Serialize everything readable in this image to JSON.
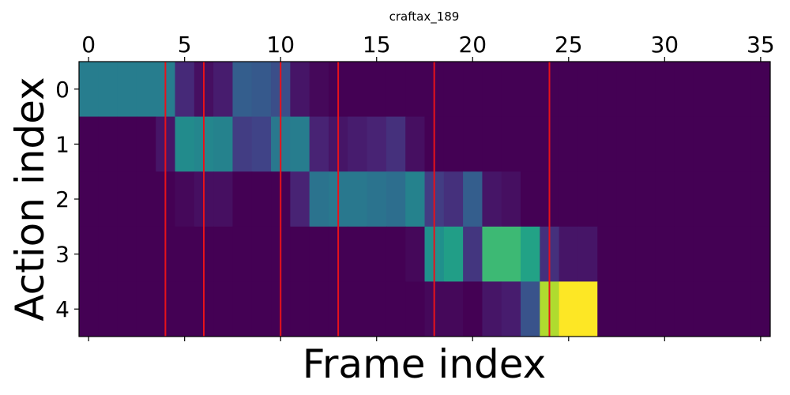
{
  "chart_data": {
    "type": "heatmap",
    "title": "craftax_189",
    "xlabel": "Frame index",
    "ylabel": "Action index",
    "x_ticks": [
      0,
      5,
      10,
      15,
      20,
      25,
      30,
      35
    ],
    "y_ticks": [
      0,
      1,
      2,
      3,
      4
    ],
    "xlim": [
      -0.5,
      35.5
    ],
    "ylim": [
      -0.5,
      4.5
    ],
    "x_tick_position": "top",
    "colormap": "viridis",
    "value_range": [
      0,
      1
    ],
    "grid": false,
    "values": [
      [
        0.42,
        0.42,
        0.42,
        0.42,
        0.42,
        0.12,
        0.04,
        0.08,
        0.3,
        0.28,
        0.24,
        0.06,
        0.02,
        0.0,
        0.0,
        0.0,
        0.0,
        0.0,
        0.0,
        0.0,
        0.0,
        0.0,
        0.0,
        0.0,
        0.0,
        0.0,
        0.0,
        0.0,
        0.0,
        0.0,
        0.0,
        0.0,
        0.0,
        0.0,
        0.0,
        0.0
      ],
      [
        0.0,
        0.0,
        0.0,
        0.0,
        0.06,
        0.48,
        0.46,
        0.44,
        0.18,
        0.2,
        0.4,
        0.42,
        0.1,
        0.06,
        0.08,
        0.1,
        0.14,
        0.04,
        0.0,
        0.0,
        0.0,
        0.0,
        0.0,
        0.0,
        0.0,
        0.0,
        0.0,
        0.0,
        0.0,
        0.0,
        0.0,
        0.0,
        0.0,
        0.0,
        0.0,
        0.0
      ],
      [
        0.0,
        0.0,
        0.0,
        0.0,
        0.0,
        0.02,
        0.04,
        0.04,
        0.0,
        0.0,
        0.0,
        0.1,
        0.38,
        0.4,
        0.4,
        0.38,
        0.36,
        0.44,
        0.18,
        0.14,
        0.3,
        0.06,
        0.04,
        0.0,
        0.0,
        0.0,
        0.0,
        0.0,
        0.0,
        0.0,
        0.0,
        0.0,
        0.0,
        0.0,
        0.0,
        0.0
      ],
      [
        0.0,
        0.0,
        0.0,
        0.0,
        0.0,
        0.0,
        0.0,
        0.0,
        0.0,
        0.0,
        0.0,
        0.0,
        0.0,
        0.0,
        0.0,
        0.0,
        0.0,
        0.02,
        0.5,
        0.56,
        0.16,
        0.68,
        0.68,
        0.58,
        0.14,
        0.06,
        0.06,
        0.0,
        0.0,
        0.0,
        0.0,
        0.0,
        0.0,
        0.0,
        0.0,
        0.0
      ],
      [
        0.0,
        0.0,
        0.0,
        0.0,
        0.0,
        0.0,
        0.0,
        0.0,
        0.0,
        0.0,
        0.0,
        0.0,
        0.0,
        0.0,
        0.0,
        0.0,
        0.0,
        0.0,
        0.02,
        0.02,
        0.0,
        0.06,
        0.08,
        0.26,
        0.88,
        1.0,
        1.0,
        0.0,
        0.0,
        0.0,
        0.0,
        0.0,
        0.0,
        0.0,
        0.0,
        0.0
      ]
    ],
    "vertical_lines": {
      "x": [
        4,
        6,
        10,
        13,
        18,
        24
      ],
      "color": "#e8121a"
    }
  }
}
